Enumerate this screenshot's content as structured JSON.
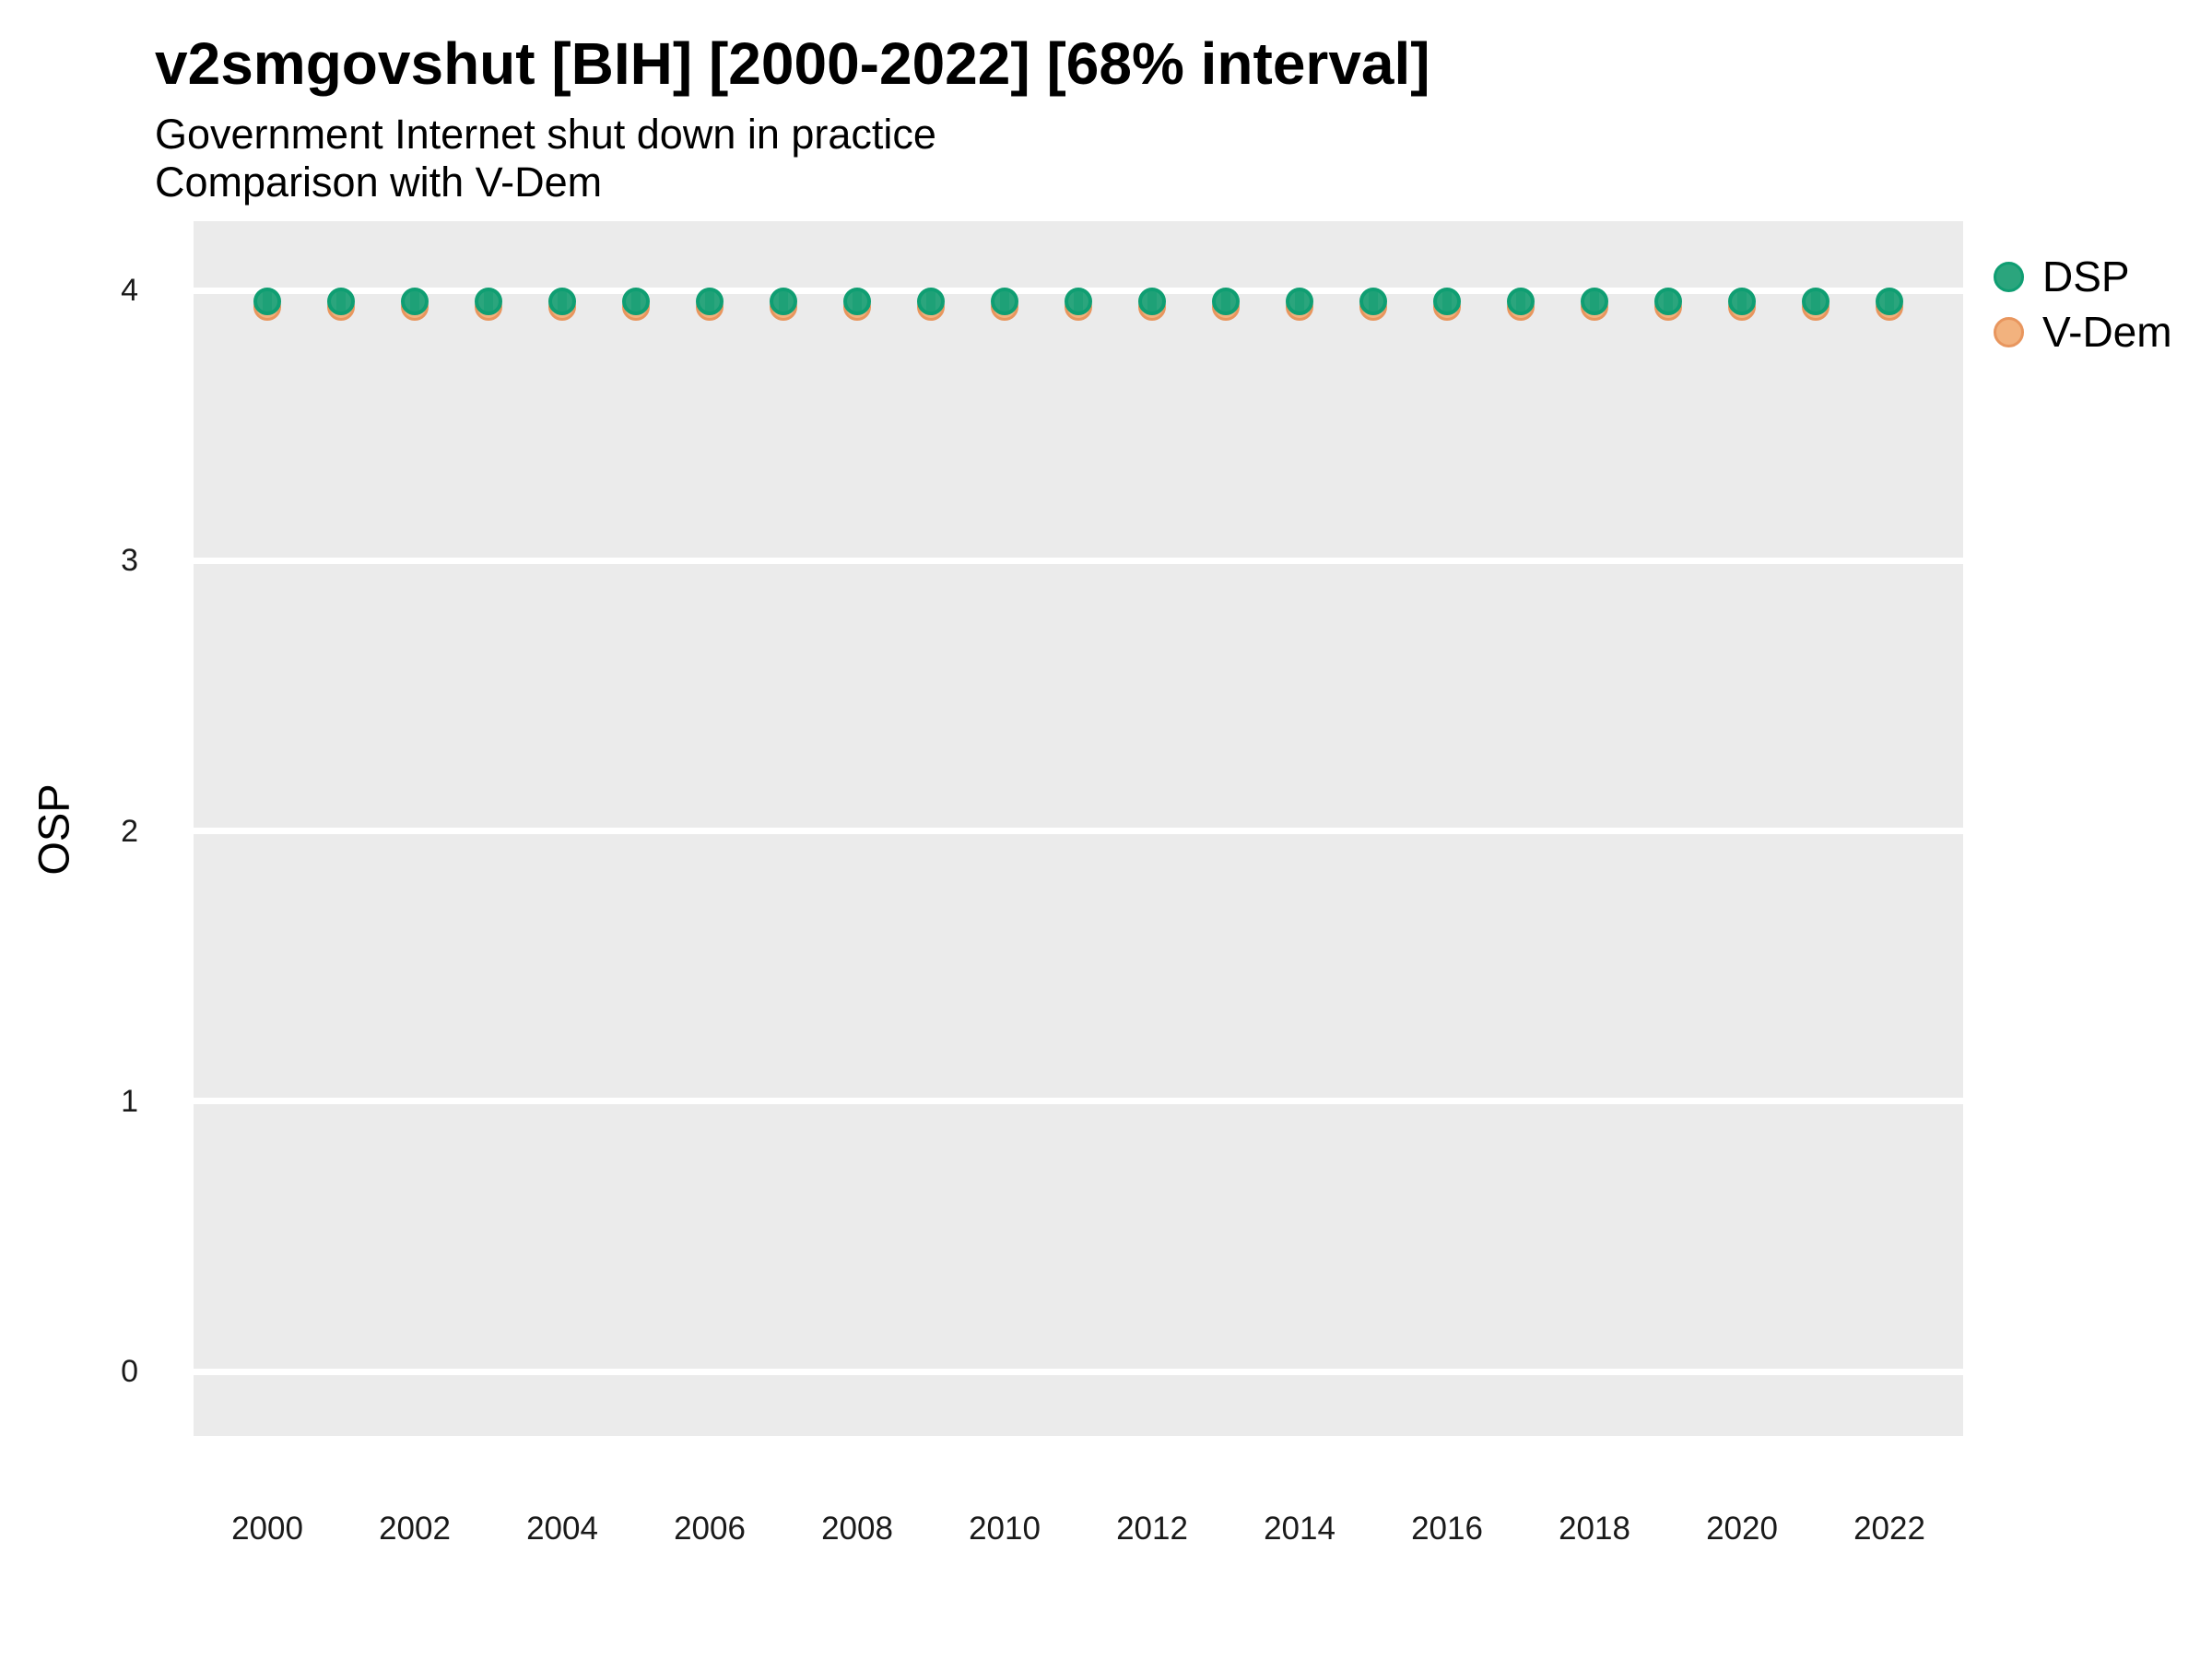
{
  "title": "v2smgovshut [BIH] [2000-2022] [68% interval]",
  "subtitle1": "Government Internet shut down in practice",
  "subtitle2": "Comparison with V-Dem",
  "y_axis": {
    "label": "OSP",
    "tick_labels": [
      "4",
      "3",
      "2",
      "1",
      "0"
    ]
  },
  "x_axis": {
    "tick_labels": [
      "2000",
      "2002",
      "2004",
      "2006",
      "2008",
      "2010",
      "2012",
      "2014",
      "2016",
      "2018",
      "2020",
      "2022"
    ]
  },
  "legend": {
    "position": "top-right",
    "items": [
      {
        "label": "DSP"
      },
      {
        "label": "V-Dem"
      }
    ]
  },
  "colors": {
    "panel_background": "#EBEBEB",
    "gridline": "#FFFFFF",
    "text": "#000000",
    "tick_text": "#1A1A1A",
    "dsp_fill": "#2BA57D",
    "dsp_stroke": "#0F9E72",
    "vdem_fill": "#F2B27E",
    "vdem_stroke": "#E8965E"
  },
  "chart_data": {
    "type": "scatter",
    "title": "v2smgovshut [BIH] [2000-2022] [68% interval]",
    "subtitle": "Government Internet shut down in practice — Comparison with V-Dem",
    "xlabel": "",
    "ylabel": "OSP",
    "x": [
      2000,
      2001,
      2002,
      2003,
      2004,
      2005,
      2006,
      2007,
      2008,
      2009,
      2010,
      2011,
      2012,
      2013,
      2014,
      2015,
      2016,
      2017,
      2018,
      2019,
      2020,
      2021,
      2022
    ],
    "series": [
      {
        "name": "DSP",
        "fill": "#2BA57D",
        "stroke": "#0F9E72",
        "values": [
          3.96,
          3.96,
          3.96,
          3.96,
          3.96,
          3.96,
          3.96,
          3.96,
          3.96,
          3.96,
          3.96,
          3.96,
          3.96,
          3.96,
          3.96,
          3.96,
          3.96,
          3.96,
          3.96,
          3.96,
          3.96,
          3.96,
          3.96
        ]
      },
      {
        "name": "V-Dem",
        "fill": "#F2B27E",
        "stroke": "#E8965E",
        "values": [
          3.94,
          3.94,
          3.94,
          3.94,
          3.94,
          3.94,
          3.94,
          3.94,
          3.94,
          3.94,
          3.94,
          3.94,
          3.94,
          3.94,
          3.94,
          3.94,
          3.94,
          3.94,
          3.94,
          3.94,
          3.94,
          3.94,
          3.94
        ]
      }
    ],
    "xticks": [
      2000,
      2002,
      2004,
      2006,
      2008,
      2010,
      2012,
      2014,
      2016,
      2018,
      2020,
      2022
    ],
    "yticks": [
      4,
      3,
      2,
      1,
      0
    ],
    "ylim": [
      -0.24,
      4.26
    ],
    "interval": "68% credible interval (intervals smaller than point markers)",
    "grid": "horizontal major gridlines only, white on gray panel",
    "legend_position": "top-right",
    "note": "V-Dem points are nearly identical to DSP points and sit hidden directly behind them, peeking out at the bottom edge"
  }
}
